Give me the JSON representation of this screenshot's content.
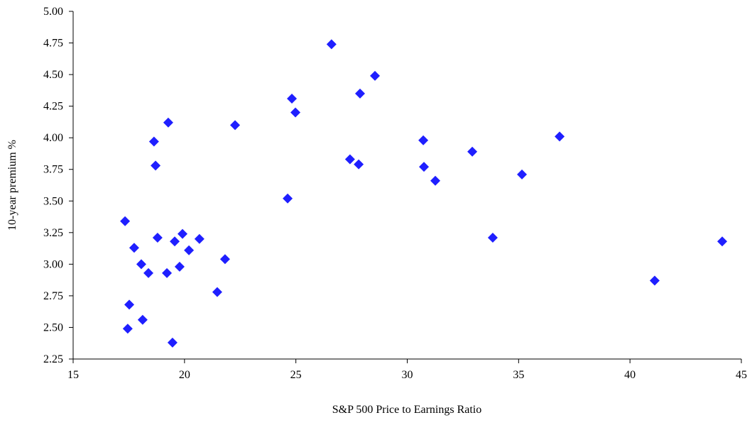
{
  "chart_data": {
    "type": "scatter",
    "xlabel": "S&P 500 Price to Earnings Ratio",
    "ylabel": "10-year premium %",
    "color": "#1f1fff",
    "grid": false,
    "xlim": [
      15,
      45
    ],
    "xticks": [
      15,
      20,
      25,
      30,
      35,
      40,
      45
    ],
    "ylim": [
      2.25,
      5
    ],
    "yticks": [
      {
        "value": 2.25,
        "label": "2.25"
      },
      {
        "value": 2.5,
        "label": "2.50"
      },
      {
        "value": 2.75,
        "label": "2.75"
      },
      {
        "value": 3,
        "label": "3.00"
      },
      {
        "value": 3.25,
        "label": "3.25"
      },
      {
        "value": 3.5,
        "label": "3.50"
      },
      {
        "value": 3.75,
        "label": "3.75"
      },
      {
        "value": 4,
        "label": "4.00"
      },
      {
        "value": 4.25,
        "label": "4.25"
      },
      {
        "value": 4.5,
        "label": "4.50"
      },
      {
        "value": 4.75,
        "label": "4.75"
      },
      {
        "value": 5,
        "label": "5.00"
      }
    ],
    "x": [
      17.33,
      17.52,
      17.45,
      17.74,
      18.06,
      18.12,
      18.38,
      18.63,
      18.7,
      18.79,
      19.27,
      19.21,
      19.46,
      19.56,
      19.78,
      19.91,
      20.2,
      20.67,
      21.47,
      21.82,
      22.27,
      24.63,
      24.82,
      24.98,
      26.6,
      27.43,
      27.82,
      27.88,
      28.55,
      30.72,
      30.75,
      31.26,
      32.92,
      33.84,
      35.15,
      36.84,
      41.11,
      44.14
    ],
    "values": [
      3.34,
      2.68,
      2.49,
      3.13,
      3.0,
      2.56,
      2.93,
      3.97,
      3.78,
      3.21,
      4.12,
      2.93,
      2.38,
      3.18,
      2.98,
      3.24,
      3.11,
      3.2,
      2.78,
      3.04,
      4.1,
      3.52,
      4.31,
      4.2,
      4.74,
      3.83,
      3.79,
      4.35,
      4.49,
      3.98,
      3.77,
      3.66,
      3.89,
      3.21,
      3.71,
      4.01,
      2.87,
      3.18
    ]
  }
}
